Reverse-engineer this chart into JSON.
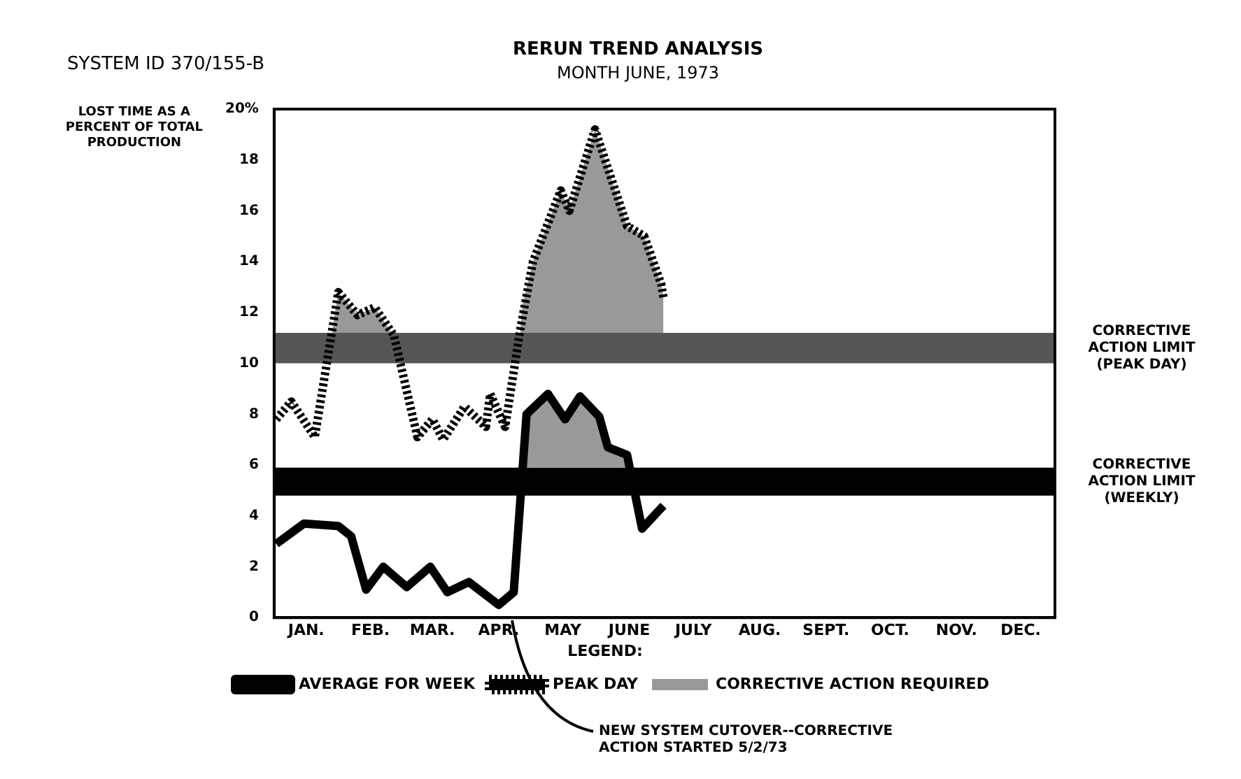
{
  "chart_data": {
    "type": "line",
    "title": "RERUN TREND ANALYSIS",
    "subtitle": "MONTH JUNE, 1973",
    "ylabel": "LOST TIME AS A PERCENT OF TOTAL PRODUCTION",
    "legend_title": "LEGEND:",
    "legend": "bottom left",
    "grid": false,
    "marker": "none",
    "xlim": [
      "1973-01-01",
      "1974-01-01"
    ],
    "xticks": [
      {
        "value": "1973-01-01",
        "label": null
      },
      {
        "value": "1973-01-16",
        "label": "JAN."
      },
      {
        "value": "1973-02-01",
        "label": null
      },
      {
        "value": "1973-02-15",
        "label": "FEB."
      },
      {
        "value": "1973-03-01",
        "label": null
      },
      {
        "value": "1973-03-16",
        "label": "MAR."
      },
      {
        "value": "1973-04-01",
        "label": null
      },
      {
        "value": "1973-04-16",
        "label": "APR."
      },
      {
        "value": "1973-05-01",
        "label": null
      },
      {
        "value": "1973-05-16",
        "label": "MAY"
      },
      {
        "value": "1973-06-01",
        "label": null
      },
      {
        "value": "1973-06-16",
        "label": "JUNE"
      },
      {
        "value": "1973-07-01",
        "label": null
      },
      {
        "value": "1973-07-16",
        "label": "JULY"
      },
      {
        "value": "1973-08-01",
        "label": null
      },
      {
        "value": "1973-08-16",
        "label": "AUG."
      },
      {
        "value": "1973-09-01",
        "label": null
      },
      {
        "value": "1973-09-16",
        "label": "SEPT."
      },
      {
        "value": "1973-10-01",
        "label": null
      },
      {
        "value": "1973-10-16",
        "label": "OCT."
      },
      {
        "value": "1973-11-01",
        "label": null
      },
      {
        "value": "1973-11-16",
        "label": "NOV."
      },
      {
        "value": "1973-12-01",
        "label": null
      },
      {
        "value": "1973-12-16",
        "label": "DEC."
      },
      {
        "value": "1974-01-01",
        "label": null
      }
    ],
    "ylim": [
      0,
      20
    ],
    "yticks": [
      0,
      2,
      4,
      6,
      8,
      10,
      12,
      14,
      16,
      18,
      {
        "value": 20,
        "label": "20%"
      }
    ],
    "series": [
      {
        "type": "area",
        "name": "CORRECTIVE ACTION REQUIRED",
        "color": "#999999",
        "x": [
          "1973-01-28",
          "1973-01-31",
          "1973-02-09",
          "1973-02-17",
          "1973-02-25"
        ],
        "values": [
          11.2,
          12.8,
          11.9,
          12.2,
          11.2
        ]
      },
      {
        "type": "area",
        "color": "#999999",
        "x": [
          "1973-04-26",
          "1973-04-27",
          "1973-05-02",
          "1973-05-15",
          "1973-05-19",
          "1973-05-31",
          "1973-06-15",
          "1973-06-23",
          "1973-07-01",
          "1973-07-02"
        ],
        "values": [
          11.2,
          12.3,
          14.0,
          16.8,
          16.0,
          19.2,
          15.4,
          15.0,
          13.1,
          12.6
        ]
      },
      {
        "type": "area",
        "color": "#999999",
        "x": [
          "1973-04-28",
          "1973-04-29",
          "1973-05-09",
          "1973-05-17",
          "1973-05-24",
          "1973-06-02",
          "1973-06-06",
          "1973-06-15",
          "1973-06-17"
        ],
        "values": [
          5.9,
          8.0,
          8.8,
          7.8,
          8.7,
          7.9,
          6.7,
          6.4,
          5.9
        ]
      },
      {
        "name": "AVERAGE FOR WEEK",
        "color": "#000000",
        "line_style": "solid",
        "x": [
          "1973-01-02",
          "1973-01-15",
          "1973-01-31",
          "1973-02-06",
          "1973-02-13",
          "1973-02-21",
          "1973-03-04",
          "1973-03-15",
          "1973-03-23",
          "1973-04-02",
          "1973-04-16",
          "1973-04-23",
          "1973-04-29",
          "1973-05-09",
          "1973-05-17",
          "1973-05-24",
          "1973-06-02",
          "1973-06-06",
          "1973-06-15",
          "1973-06-22",
          "1973-07-02"
        ],
        "values": [
          2.9,
          3.7,
          3.6,
          3.2,
          1.1,
          2.0,
          1.2,
          2.0,
          1.0,
          1.4,
          0.5,
          1.0,
          8.0,
          8.8,
          7.8,
          8.7,
          7.9,
          6.7,
          6.4,
          3.5,
          4.4
        ]
      },
      {
        "name": "PEAK DAY",
        "color": "#000000",
        "line_style": "dotted",
        "x": [
          "1973-01-02",
          "1973-01-09",
          "1973-01-20",
          "1973-01-31",
          "1973-02-09",
          "1973-02-17",
          "1973-02-26",
          "1973-03-09",
          "1973-03-16",
          "1973-03-21",
          "1973-03-31",
          "1973-04-10",
          "1973-04-12",
          "1973-04-19",
          "1973-04-26",
          "1973-05-02",
          "1973-05-15",
          "1973-05-19",
          "1973-05-31",
          "1973-06-15",
          "1973-06-23",
          "1973-07-01",
          "1973-07-02"
        ],
        "values": [
          7.8,
          8.5,
          7.1,
          12.8,
          11.9,
          12.2,
          11.1,
          7.1,
          7.8,
          7.0,
          8.3,
          7.5,
          8.8,
          7.5,
          11.3,
          14.0,
          16.8,
          16.0,
          19.2,
          15.4,
          15.0,
          13.1,
          12.6
        ]
      }
    ],
    "bands": [
      {
        "axis": "y",
        "from": 10,
        "to": 11.2,
        "label": "CORRECTIVE ACTION LIMIT (PEAK DAY)",
        "color": "#555555"
      },
      {
        "axis": "y",
        "from": 4.8,
        "to": 5.9,
        "label": "CORRECTIVE ACTION LIMIT (WEEKLY)",
        "color": "#000000"
      }
    ],
    "annotations": [
      "SYSTEM ID 370/155-B",
      "NEW SYSTEM CUTOVER--CORRECTIVE ACTION STARTED 5/2/73"
    ]
  }
}
